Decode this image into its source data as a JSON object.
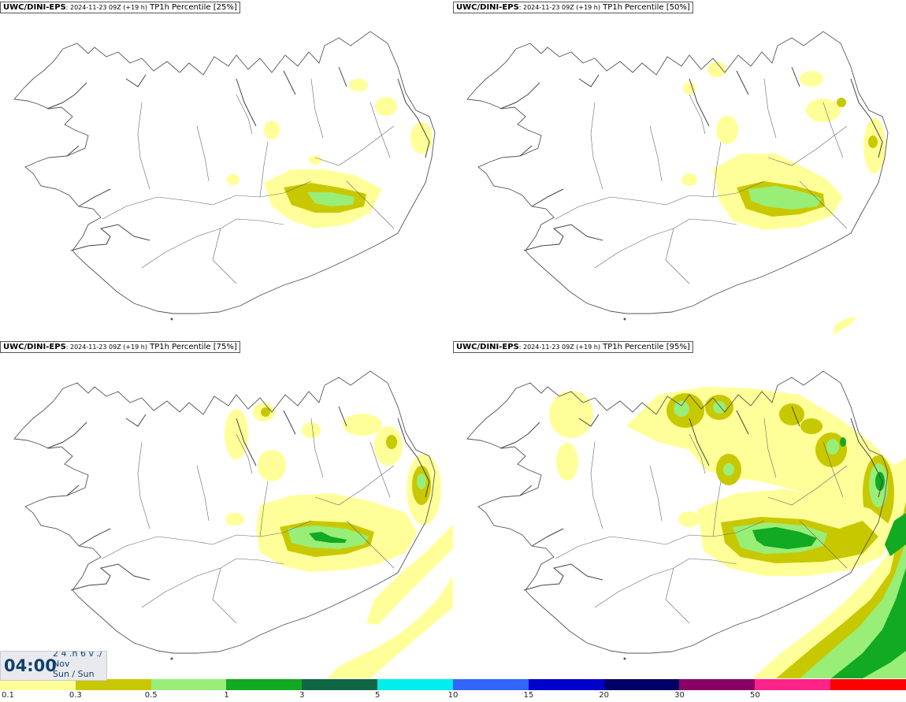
{
  "panels": [
    {
      "source": "UWC/DINI-EPS",
      "run": ": 2024-11-23 09Z (+19 h)",
      "field": " TP1h Percentile [25%]"
    },
    {
      "source": "UWC/DINI-EPS",
      "run": ": 2024-11-23 09Z (+19 h)",
      "field": " TP1h Percentile [50%]"
    },
    {
      "source": "UWC/DINI-EPS",
      "run": ": 2024-11-23 09Z (+19 h)",
      "field": " TP1h Percentile [75%]"
    },
    {
      "source": "UWC/DINI-EPS",
      "run": ": 2024-11-23 09Z (+19 h)",
      "field": " TP1h Percentile [95%]"
    }
  ],
  "time": {
    "clock": "04:00",
    "line1": "2 4 .n 6 v ./",
    "line2": "Nov",
    "line3": "Sun / Sun"
  },
  "legend": {
    "labels": [
      "0.1",
      "0.3",
      "0.5",
      "1",
      "3",
      "5",
      "10",
      "15",
      "20",
      "30",
      "50"
    ],
    "colors": [
      "#ffff99",
      "#c8c800",
      "#99ee77",
      "#11aa22",
      "#116644",
      "#00eeee",
      "#3366ff",
      "#0000cc",
      "#000066",
      "#880066",
      "#ff2288",
      "#ff0000"
    ]
  },
  "shade_colors": {
    "light_yellow": "#ffff99",
    "olive": "#c8c800",
    "light_green": "#99ee77",
    "green": "#11aa22",
    "dark_green": "#116644"
  }
}
